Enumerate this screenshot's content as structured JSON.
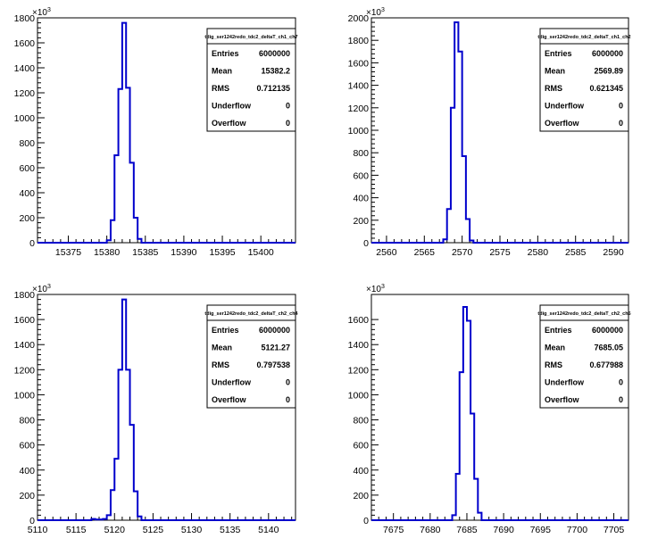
{
  "chart_data": [
    {
      "type": "bar",
      "title": "tdig_ser1242redo_tdc2_deltaT_ch1_ch7",
      "stats": [
        {
          "label": "Entries",
          "value": "6000000"
        },
        {
          "label": "Mean",
          "value": "15382.2"
        },
        {
          "label": "RMS",
          "value": "0.712135"
        },
        {
          "label": "Underflow",
          "value": "0"
        },
        {
          "label": "Overflow",
          "value": "0"
        }
      ],
      "y_multiplier": "×10",
      "y_exponent": "3",
      "xlim": [
        15371,
        15404.5
      ],
      "ylim": [
        0,
        1800
      ],
      "xticks": [
        15375,
        15380,
        15385,
        15390,
        15395,
        15400
      ],
      "yticks": [
        0,
        200,
        400,
        600,
        800,
        1000,
        1200,
        1400,
        1600,
        1800
      ],
      "bin_edges": [
        15380,
        15380.5,
        15381,
        15381.5,
        15382,
        15382.5,
        15383,
        15383.5,
        15384,
        15384.5
      ],
      "values": [
        20,
        180,
        700,
        1230,
        1760,
        1240,
        640,
        200,
        30
      ]
    },
    {
      "type": "bar",
      "title": "tdig_ser1242redo_tdc2_deltaT_ch1_ch2",
      "stats": [
        {
          "label": "Entries",
          "value": "6000000"
        },
        {
          "label": "Mean",
          "value": "2569.89"
        },
        {
          "label": "RMS",
          "value": "0.621345"
        },
        {
          "label": "Underflow",
          "value": "0"
        },
        {
          "label": "Overflow",
          "value": "0"
        }
      ],
      "y_multiplier": "×10",
      "y_exponent": "3",
      "xlim": [
        2558,
        2592
      ],
      "ylim": [
        0,
        2000
      ],
      "xticks": [
        2560,
        2565,
        2570,
        2575,
        2580,
        2585,
        2590
      ],
      "yticks": [
        0,
        200,
        400,
        600,
        800,
        1000,
        1200,
        1400,
        1600,
        1800,
        2000
      ],
      "bin_edges": [
        2567.5,
        2568,
        2568.5,
        2569,
        2569.5,
        2570,
        2570.5,
        2571,
        2571.5,
        2572
      ],
      "values": [
        30,
        300,
        1200,
        1960,
        1700,
        770,
        210,
        20,
        0
      ]
    },
    {
      "type": "bar",
      "title": "tdig_ser1242redo_tdc2_deltaT_ch2_ch4",
      "stats": [
        {
          "label": "Entries",
          "value": "6000000"
        },
        {
          "label": "Mean",
          "value": "5121.27"
        },
        {
          "label": "RMS",
          "value": "0.797538"
        },
        {
          "label": "Underflow",
          "value": "0"
        },
        {
          "label": "Overflow",
          "value": "0"
        }
      ],
      "y_multiplier": "×10",
      "y_exponent": "3",
      "xlim": [
        5110,
        5143.5
      ],
      "ylim": [
        0,
        1800
      ],
      "xticks": [
        5110,
        5115,
        5120,
        5125,
        5130,
        5135,
        5140
      ],
      "yticks": [
        0,
        200,
        400,
        600,
        800,
        1000,
        1200,
        1400,
        1600,
        1800
      ],
      "bin_edges": [
        5117,
        5117.5,
        5118,
        5118.5,
        5119,
        5119.5,
        5120,
        5120.5,
        5121,
        5121.5,
        5122,
        5122.5,
        5123,
        5123.5
      ],
      "values": [
        10,
        5,
        5,
        10,
        40,
        240,
        490,
        1200,
        1760,
        1200,
        760,
        230,
        30
      ]
    },
    {
      "type": "bar",
      "title": "tdig_ser1242redo_tdc2_deltaT_ch2_ch5",
      "stats": [
        {
          "label": "Entries",
          "value": "6000000"
        },
        {
          "label": "Mean",
          "value": "7685.05"
        },
        {
          "label": "RMS",
          "value": "0.677988"
        },
        {
          "label": "Underflow",
          "value": "0"
        },
        {
          "label": "Overflow",
          "value": "0"
        }
      ],
      "y_multiplier": "×10",
      "y_exponent": "3",
      "xlim": [
        7672,
        7707
      ],
      "ylim": [
        0,
        1800
      ],
      "xticks": [
        7675,
        7680,
        7685,
        7690,
        7695,
        7700,
        7705
      ],
      "yticks": [
        0,
        200,
        400,
        600,
        800,
        1000,
        1200,
        1400,
        1600
      ],
      "bin_edges": [
        7683,
        7683.5,
        7684,
        7684.5,
        7685,
        7685.5,
        7686,
        7686.5,
        7687
      ],
      "values": [
        40,
        370,
        1180,
        1700,
        1590,
        850,
        330,
        60
      ]
    }
  ],
  "colors": {
    "line": "#0000cc",
    "axis": "#000000",
    "background": "#ffffff"
  }
}
